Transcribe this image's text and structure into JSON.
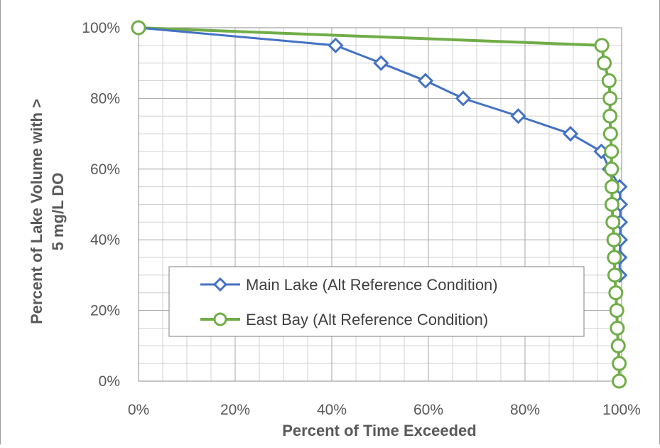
{
  "chart_data": {
    "type": "line",
    "title": "",
    "xlabel": "Percent of Time Exceeded",
    "ylabel": "Percent of Lake Volume with > 5 mg/L DO",
    "xlim": [
      0,
      100
    ],
    "ylim": [
      0,
      100
    ],
    "x_ticks": [
      "0%",
      "20%",
      "40%",
      "60%",
      "80%",
      "100%"
    ],
    "y_ticks": [
      "0%",
      "20%",
      "40%",
      "60%",
      "80%",
      "100%"
    ],
    "grid": true,
    "legend_position": "bottom-center",
    "series": [
      {
        "name": "Main Lake (Alt Reference Condition)",
        "color": "#4472C4",
        "marker": "diamond",
        "points": [
          {
            "x": 0,
            "y": 100
          },
          {
            "x": 40.8,
            "y": 95
          },
          {
            "x": 50.2,
            "y": 90
          },
          {
            "x": 59.4,
            "y": 85
          },
          {
            "x": 67.2,
            "y": 80
          },
          {
            "x": 78.6,
            "y": 75
          },
          {
            "x": 89.4,
            "y": 70
          },
          {
            "x": 95.8,
            "y": 65
          },
          {
            "x": 97.5,
            "y": 60
          },
          {
            "x": 99.6,
            "y": 55
          },
          {
            "x": 99.7,
            "y": 50
          },
          {
            "x": 99.7,
            "y": 45
          },
          {
            "x": 99.7,
            "y": 40
          },
          {
            "x": 99.6,
            "y": 35
          },
          {
            "x": 99.6,
            "y": 30
          }
        ]
      },
      {
        "name": "East Bay (Alt Reference Condition)",
        "color": "#70AD47",
        "marker": "circle",
        "points": [
          {
            "x": 0,
            "y": 100
          },
          {
            "x": 95.9,
            "y": 95
          },
          {
            "x": 96.4,
            "y": 90
          },
          {
            "x": 97.4,
            "y": 85
          },
          {
            "x": 97.6,
            "y": 80
          },
          {
            "x": 97.6,
            "y": 75
          },
          {
            "x": 97.7,
            "y": 70
          },
          {
            "x": 97.9,
            "y": 65
          },
          {
            "x": 97.9,
            "y": 60
          },
          {
            "x": 98.0,
            "y": 55
          },
          {
            "x": 98.0,
            "y": 50
          },
          {
            "x": 98.2,
            "y": 45
          },
          {
            "x": 98.4,
            "y": 40
          },
          {
            "x": 98.5,
            "y": 35
          },
          {
            "x": 98.6,
            "y": 30
          },
          {
            "x": 98.8,
            "y": 25
          },
          {
            "x": 99.0,
            "y": 20
          },
          {
            "x": 99.1,
            "y": 15
          },
          {
            "x": 99.3,
            "y": 10
          },
          {
            "x": 99.5,
            "y": 5
          },
          {
            "x": 99.5,
            "y": 0
          }
        ]
      }
    ]
  }
}
